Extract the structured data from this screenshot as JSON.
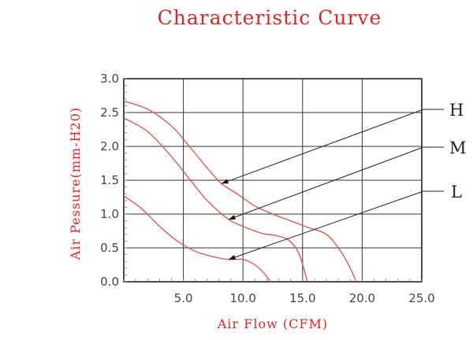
{
  "chart_data": {
    "type": "line",
    "title": "Characteristic Curve",
    "xlabel": "Air Flow (CFM)",
    "ylabel": "Air Pessure(mm-H20)",
    "xlim": [
      0,
      25
    ],
    "ylim": [
      0,
      3
    ],
    "x_ticks": [
      "5.0",
      "10.0",
      "15.0",
      "20.0",
      "25.0"
    ],
    "y_ticks": [
      "0.0",
      "0.5",
      "1.0",
      "1.5",
      "2.0",
      "2.5",
      "3.0"
    ],
    "grid": true,
    "colors": {
      "curve": "#d9534f",
      "title": "#d42a2a",
      "axis": "#222222"
    },
    "series": [
      {
        "name": "H",
        "marker_at": [
          8.2,
          1.45
        ],
        "points": [
          [
            0,
            2.67
          ],
          [
            2,
            2.55
          ],
          [
            4,
            2.3
          ],
          [
            5.5,
            2.0
          ],
          [
            7,
            1.68
          ],
          [
            8.2,
            1.45
          ],
          [
            9.5,
            1.3
          ],
          [
            11,
            1.12
          ],
          [
            12.5,
            1.0
          ],
          [
            14,
            0.9
          ],
          [
            15.5,
            0.8
          ],
          [
            17,
            0.7
          ],
          [
            18.2,
            0.45
          ],
          [
            19,
            0.2
          ],
          [
            19.5,
            0
          ]
        ]
      },
      {
        "name": "M",
        "marker_at": [
          8.8,
          0.92
        ],
        "points": [
          [
            0,
            2.42
          ],
          [
            2,
            2.22
          ],
          [
            4,
            1.85
          ],
          [
            5.5,
            1.52
          ],
          [
            7,
            1.2
          ],
          [
            8.8,
            0.92
          ],
          [
            10,
            0.82
          ],
          [
            11.5,
            0.72
          ],
          [
            12.8,
            0.68
          ],
          [
            13.8,
            0.62
          ],
          [
            14.6,
            0.45
          ],
          [
            15.1,
            0.2
          ],
          [
            15.4,
            0
          ]
        ]
      },
      {
        "name": "L",
        "marker_at": [
          8.8,
          0.33
        ],
        "points": [
          [
            0,
            1.27
          ],
          [
            1.5,
            1.08
          ],
          [
            3,
            0.82
          ],
          [
            4.5,
            0.6
          ],
          [
            6,
            0.45
          ],
          [
            7.5,
            0.37
          ],
          [
            8.8,
            0.33
          ],
          [
            10,
            0.33
          ],
          [
            11,
            0.25
          ],
          [
            11.8,
            0.12
          ],
          [
            12.3,
            0
          ]
        ]
      }
    ]
  }
}
